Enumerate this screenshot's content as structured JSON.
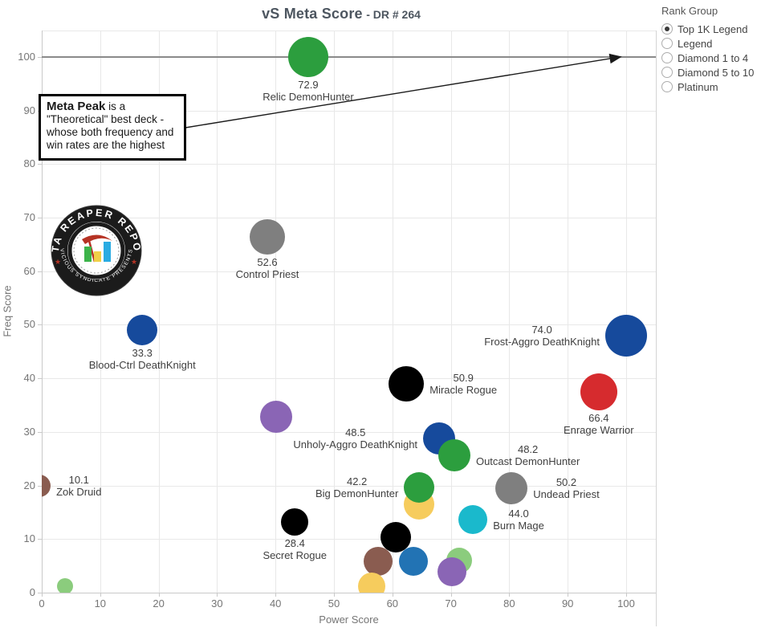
{
  "title": {
    "main": "vS Meta Score",
    "suffix": "- DR # 264"
  },
  "rank_group": {
    "label": "Rank Group",
    "options": [
      {
        "label": "Top 1K Legend",
        "selected": true
      },
      {
        "label": "Legend",
        "selected": false
      },
      {
        "label": "Diamond 1 to 4",
        "selected": false
      },
      {
        "label": "Diamond 5 to 10",
        "selected": false
      },
      {
        "label": "Platinum",
        "selected": false
      }
    ]
  },
  "annotation": {
    "bold": "Meta Peak",
    "text": " is a \"Theoretical\" best deck - whose both frequency and win rates are the highest"
  },
  "logo": {
    "top_text": "DATA REAPER REPORT",
    "bottom_text": "VICIOUS SYNDICATE PRESENTS"
  },
  "chart_data": {
    "type": "scatter",
    "title": "vS Meta Score - DR # 264",
    "xlabel": "Power Score",
    "ylabel": "Freq Score",
    "xlim": [
      0,
      105
    ],
    "ylim": [
      0,
      105
    ],
    "x_ticks": [
      0,
      10,
      20,
      30,
      40,
      50,
      60,
      70,
      80,
      90,
      100
    ],
    "y_ticks": [
      0,
      10,
      20,
      30,
      40,
      50,
      60,
      70,
      80,
      90,
      100
    ],
    "grid": true,
    "reference_line_y": 100,
    "legend_position": "none",
    "points": [
      {
        "name": "Relic DemonHunter",
        "score": "72.9",
        "x": 45.6,
        "y": 100,
        "r": 25,
        "color": "#2c9e3e",
        "label_side": "below"
      },
      {
        "name": "Control Priest",
        "score": "52.6",
        "x": 38.6,
        "y": 66.4,
        "r": 22,
        "color": "#7f7f7f",
        "label_side": "below"
      },
      {
        "name": "Blood-Ctrl DeathKnight",
        "score": "33.3",
        "x": 17.2,
        "y": 49.0,
        "r": 19,
        "color": "#164a9c",
        "label_side": "below"
      },
      {
        "name": "Frost-Aggro DeathKnight",
        "score": "74.0",
        "x": 100,
        "y": 48.0,
        "r": 26,
        "color": "#164a9c",
        "label_side": "left"
      },
      {
        "name": "Miracle Rogue",
        "score": "50.9",
        "x": 62.4,
        "y": 39.0,
        "r": 22,
        "color": "#000000",
        "label_side": "right"
      },
      {
        "name": "Enrage Warrior",
        "score": "66.4",
        "x": 95.3,
        "y": 37.5,
        "r": 23,
        "color": "#d62b2e",
        "label_side": "below"
      },
      {
        "name": "",
        "score": null,
        "x": 40.1,
        "y": 32.8,
        "r": 20,
        "color": "#8a65b5",
        "label_side": "none"
      },
      {
        "name": "Unholy-Aggro DeathKnight",
        "score": "48.5",
        "x": 68.0,
        "y": 28.8,
        "r": 20,
        "color": "#164a9c",
        "label_side": "left"
      },
      {
        "name": "Outcast DemonHunter",
        "score": "48.2",
        "x": 70.6,
        "y": 25.6,
        "r": 20,
        "color": "#2c9e3e",
        "label_side": "right"
      },
      {
        "name": "Undead Priest",
        "score": "50.2",
        "x": 80.4,
        "y": 19.5,
        "r": 20,
        "color": "#7f7f7f",
        "label_side": "right"
      },
      {
        "name": "",
        "score": null,
        "x": 64.6,
        "y": 16.5,
        "r": 19,
        "color": "#f6cc5d",
        "label_side": "none"
      },
      {
        "name": "Big DemonHunter",
        "score": "42.2",
        "x": 64.6,
        "y": 19.6,
        "r": 19,
        "color": "#2c9e3e",
        "label_side": "left"
      },
      {
        "name": "Burn Mage",
        "score": "44.0",
        "x": 73.8,
        "y": 13.6,
        "r": 18,
        "color": "#1ab9cc",
        "label_side": "right"
      },
      {
        "name": "Secret Rogue",
        "score": "28.4",
        "x": 43.3,
        "y": 13.2,
        "r": 17,
        "color": "#000000",
        "label_side": "below"
      },
      {
        "name": "Zok Druid",
        "score": "10.1",
        "x": -0.4,
        "y": 19.9,
        "r": 14,
        "color": "#8a5c50",
        "label_side": "right"
      },
      {
        "name": "",
        "score": null,
        "x": 60.6,
        "y": 10.3,
        "r": 19,
        "color": "#000000",
        "label_side": "none"
      },
      {
        "name": "",
        "score": null,
        "x": 57.6,
        "y": 5.8,
        "r": 18,
        "color": "#8a5c50",
        "label_side": "none"
      },
      {
        "name": "",
        "score": null,
        "x": 63.6,
        "y": 5.8,
        "r": 18,
        "color": "#2273b4",
        "label_side": "none"
      },
      {
        "name": "",
        "score": null,
        "x": 71.4,
        "y": 6.0,
        "r": 16,
        "color": "#8bcc7d",
        "label_side": "none"
      },
      {
        "name": "",
        "score": null,
        "x": 70.2,
        "y": 3.9,
        "r": 18,
        "color": "#8a65b5",
        "label_side": "none"
      },
      {
        "name": "",
        "score": null,
        "x": 56.5,
        "y": 1.2,
        "r": 17,
        "color": "#f6cc5d",
        "label_side": "none"
      },
      {
        "name": "",
        "score": null,
        "x": 4.0,
        "y": 1.2,
        "r": 10,
        "color": "#8bcc7d",
        "label_side": "none"
      }
    ]
  }
}
